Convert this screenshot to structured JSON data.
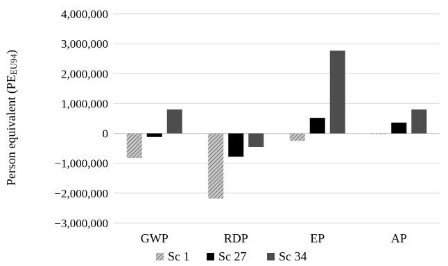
{
  "chart_data": {
    "type": "bar",
    "categories": [
      "GWP",
      "RDP",
      "EP",
      "AP"
    ],
    "series": [
      {
        "name": "Sc 1",
        "color": "#9a9a9a",
        "pattern": "diagonal-hatch",
        "values": [
          -820000,
          -2180000,
          -250000,
          -20000
        ]
      },
      {
        "name": "Sc 27",
        "color": "#000000",
        "pattern": "solid",
        "values": [
          -120000,
          -780000,
          520000,
          360000
        ]
      },
      {
        "name": "Sc 34",
        "color": "#4d4d4d",
        "pattern": "solid",
        "values": [
          800000,
          -450000,
          2770000,
          800000
        ]
      }
    ],
    "ylim": [
      -3000000,
      4000000
    ],
    "yticks": [
      -3000000,
      -2000000,
      -1000000,
      0,
      1000000,
      2000000,
      3000000,
      4000000
    ],
    "ytick_labels": [
      "−3,000,000",
      "−2,000,000",
      "−1,000,000",
      "0",
      "1,000,000",
      "2,000,000",
      "3,000,000",
      "4,000,000"
    ],
    "ylabel": "Person equivalent (PE",
    "ylabel_sub": "EU94",
    "ylabel_close": ")",
    "xlabel": "",
    "title": "",
    "grid": true,
    "legend": "bottom"
  }
}
